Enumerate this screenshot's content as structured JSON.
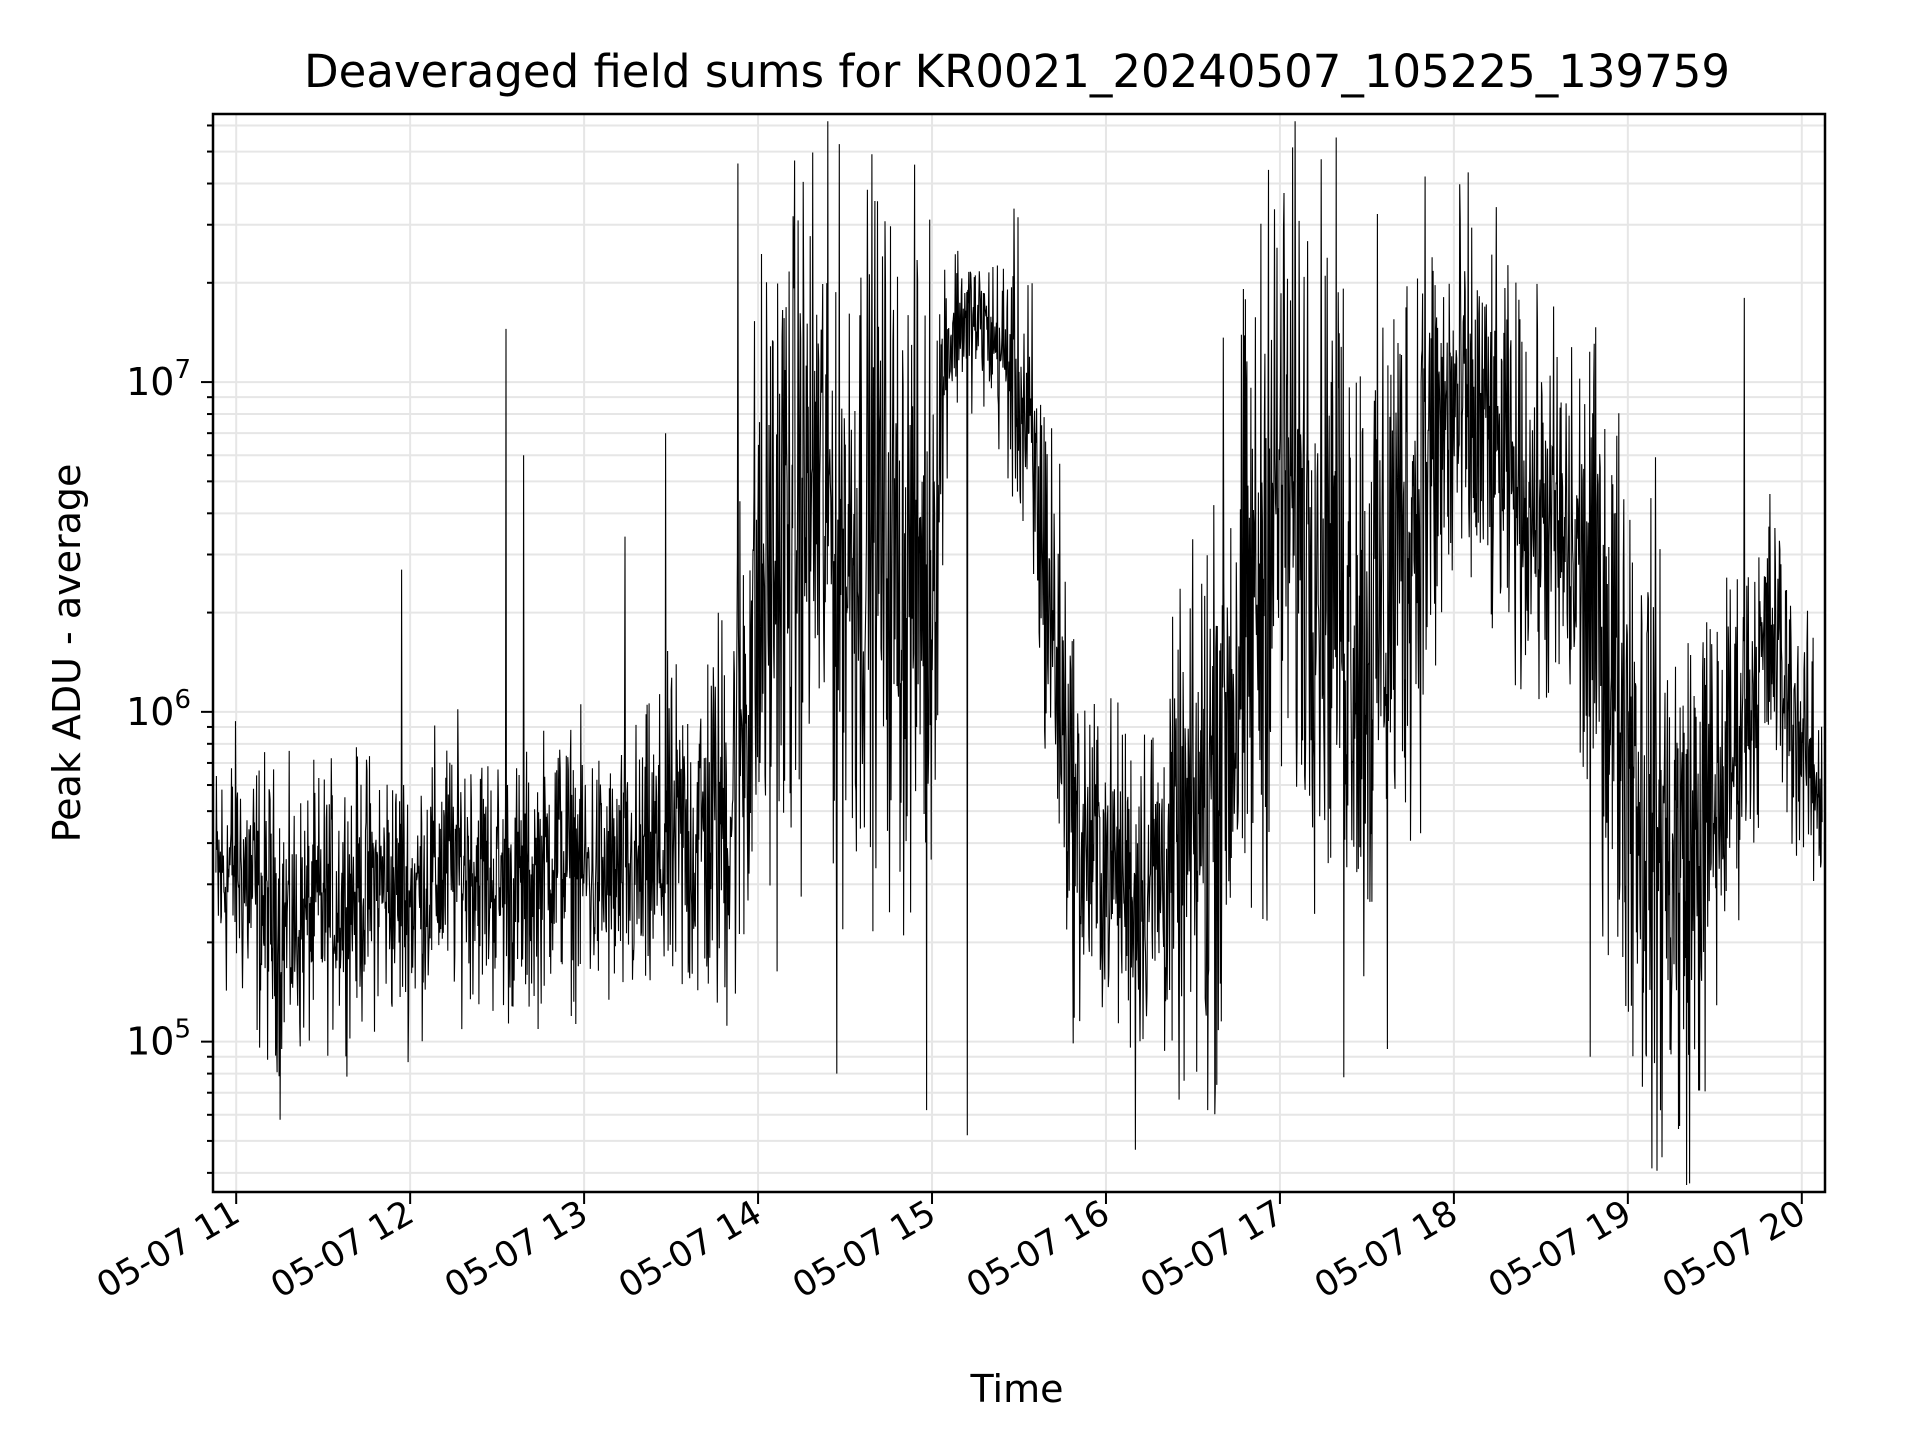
{
  "chart_data": {
    "type": "line",
    "title": "Deaveraged field sums for KR0021_20240507_105225_139759",
    "xlabel": "Time",
    "ylabel": "Peak ADU - average",
    "yscale": "log",
    "xlim": [
      "2024-05-07 10:52",
      "2024-05-07 20:08"
    ],
    "ylim": [
      35000,
      65000000
    ],
    "grid": true,
    "xticks": [
      {
        "t": "2024-05-07 11:00",
        "label": "05-07 11"
      },
      {
        "t": "2024-05-07 12:00",
        "label": "05-07 12"
      },
      {
        "t": "2024-05-07 13:00",
        "label": "05-07 13"
      },
      {
        "t": "2024-05-07 14:00",
        "label": "05-07 14"
      },
      {
        "t": "2024-05-07 15:00",
        "label": "05-07 15"
      },
      {
        "t": "2024-05-07 16:00",
        "label": "05-07 16"
      },
      {
        "t": "2024-05-07 17:00",
        "label": "05-07 17"
      },
      {
        "t": "2024-05-07 18:00",
        "label": "05-07 18"
      },
      {
        "t": "2024-05-07 19:00",
        "label": "05-07 19"
      },
      {
        "t": "2024-05-07 20:00",
        "label": "05-07 20"
      }
    ],
    "yticks": [
      {
        "value": 100000,
        "base": "10",
        "exp": "5"
      },
      {
        "value": 1000000,
        "base": "10",
        "exp": "6"
      },
      {
        "value": 10000000,
        "base": "10",
        "exp": "7"
      }
    ],
    "series": [
      {
        "color": "#000000",
        "x": [
          "2024-05-07 10:53",
          "2024-05-07 11:00",
          "2024-05-07 11:10",
          "2024-05-07 11:20",
          "2024-05-07 11:30",
          "2024-05-07 11:40",
          "2024-05-07 11:50",
          "2024-05-07 12:00",
          "2024-05-07 12:10",
          "2024-05-07 12:20",
          "2024-05-07 12:30",
          "2024-05-07 12:40",
          "2024-05-07 12:50",
          "2024-05-07 13:00",
          "2024-05-07 13:10",
          "2024-05-07 13:20",
          "2024-05-07 13:30",
          "2024-05-07 13:40",
          "2024-05-07 13:50",
          "2024-05-07 14:00",
          "2024-05-07 14:10",
          "2024-05-07 14:20",
          "2024-05-07 14:30",
          "2024-05-07 14:40",
          "2024-05-07 14:50",
          "2024-05-07 15:00",
          "2024-05-07 15:05",
          "2024-05-07 15:10",
          "2024-05-07 15:20",
          "2024-05-07 15:30",
          "2024-05-07 15:40",
          "2024-05-07 15:50",
          "2024-05-07 16:00",
          "2024-05-07 16:10",
          "2024-05-07 16:20",
          "2024-05-07 16:30",
          "2024-05-07 16:40",
          "2024-05-07 16:50",
          "2024-05-07 17:00",
          "2024-05-07 17:10",
          "2024-05-07 17:20",
          "2024-05-07 17:30",
          "2024-05-07 17:40",
          "2024-05-07 17:50",
          "2024-05-07 18:00",
          "2024-05-07 18:10",
          "2024-05-07 18:20",
          "2024-05-07 18:30",
          "2024-05-07 18:40",
          "2024-05-07 18:50",
          "2024-05-07 19:00",
          "2024-05-07 19:10",
          "2024-05-07 19:20",
          "2024-05-07 19:30",
          "2024-05-07 19:40",
          "2024-05-07 19:50",
          "2024-05-07 20:00",
          "2024-05-07 20:07"
        ],
        "y": [
          300000,
          350000,
          250000,
          220000,
          260000,
          280000,
          300000,
          270000,
          330000,
          350000,
          300000,
          280000,
          380000,
          330000,
          300000,
          320000,
          380000,
          420000,
          500000,
          2000000,
          3500000,
          5000000,
          3000000,
          4000000,
          2500000,
          3000000,
          13000000,
          16000000,
          14000000,
          10000000,
          2500000,
          400000,
          350000,
          300000,
          330000,
          400000,
          900000,
          1800000,
          5000000,
          4000000,
          3000000,
          1500000,
          3000000,
          5000000,
          8000000,
          7000000,
          5000000,
          4000000,
          3000000,
          2000000,
          900000,
          400000,
          300000,
          500000,
          1000000,
          1700000,
          800000,
          550000
        ],
        "amplitude": [
          0.35,
          0.35,
          0.4,
          0.35,
          0.35,
          0.35,
          0.35,
          0.35,
          0.35,
          0.35,
          0.35,
          0.35,
          0.35,
          0.35,
          0.35,
          0.4,
          0.45,
          0.5,
          0.6,
          0.9,
          0.9,
          0.9,
          0.9,
          0.9,
          0.9,
          0.9,
          0.3,
          0.2,
          0.2,
          0.4,
          0.6,
          0.5,
          0.4,
          0.45,
          0.5,
          0.7,
          0.9,
          0.9,
          0.9,
          0.9,
          0.9,
          0.9,
          0.85,
          0.75,
          0.6,
          0.55,
          0.5,
          0.5,
          0.6,
          0.7,
          0.8,
          0.85,
          0.8,
          0.6,
          0.4,
          0.4,
          0.35,
          0.3
        ]
      }
    ],
    "spikes": [
      {
        "t": "2024-05-07 11:15",
        "value": 58000
      },
      {
        "t": "2024-05-07 11:57",
        "value": 2700000
      },
      {
        "t": "2024-05-07 12:33",
        "value": 14500000
      },
      {
        "t": "2024-05-07 12:39",
        "value": 6000000
      },
      {
        "t": "2024-05-07 13:14",
        "value": 3400000
      },
      {
        "t": "2024-05-07 13:28",
        "value": 7000000
      },
      {
        "t": "2024-05-07 13:53",
        "value": 46000000
      },
      {
        "t": "2024-05-07 14:27",
        "value": 80000
      },
      {
        "t": "2024-05-07 14:58",
        "value": 62000
      },
      {
        "t": "2024-05-07 15:12",
        "value": 52000
      },
      {
        "t": "2024-05-07 16:10",
        "value": 47000
      },
      {
        "t": "2024-05-07 16:35",
        "value": 62000
      },
      {
        "t": "2024-05-07 16:56",
        "value": 44000000
      },
      {
        "t": "2024-05-07 17:22",
        "value": 78000
      },
      {
        "t": "2024-05-07 17:37",
        "value": 95000
      },
      {
        "t": "2024-05-07 17:50",
        "value": 42000000
      },
      {
        "t": "2024-05-07 18:47",
        "value": 90000
      },
      {
        "t": "2024-05-07 19:05",
        "value": 73000
      },
      {
        "t": "2024-05-07 19:40",
        "value": 18000000
      }
    ]
  }
}
